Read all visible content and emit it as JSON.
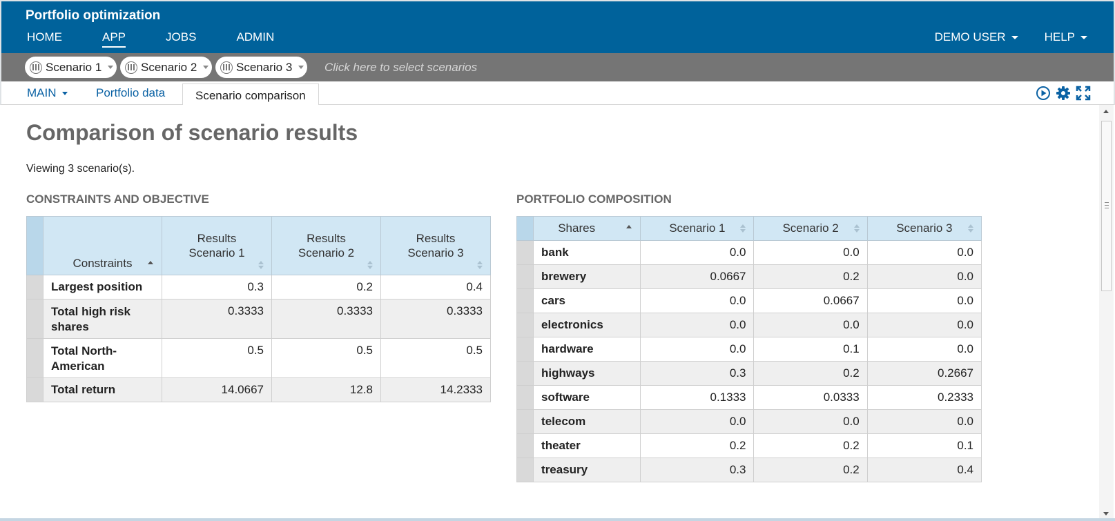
{
  "app": {
    "title": "Portfolio optimization"
  },
  "nav": {
    "items": [
      "HOME",
      "APP",
      "JOBS",
      "ADMIN"
    ],
    "active": "APP",
    "user": "DEMO USER",
    "help": "HELP"
  },
  "scenarios": {
    "pills": [
      "Scenario 1",
      "Scenario 2",
      "Scenario 3"
    ],
    "hint": "Click here to select scenarios"
  },
  "tabs": {
    "main": "MAIN",
    "portfolio": "Portfolio data",
    "comparison": "Scenario comparison"
  },
  "icons": {
    "run": "play-circle-icon",
    "settings": "gear-icon",
    "expand": "fullscreen-icon"
  },
  "page": {
    "title": "Comparison of scenario results",
    "viewing": "Viewing 3 scenario(s)."
  },
  "constraints": {
    "section_title": "CONSTRAINTS AND OBJECTIVE",
    "columns": [
      "Constraints",
      "Results\nScenario 1",
      "Results\nScenario 2",
      "Results\nScenario 3"
    ],
    "rows": [
      {
        "label": "Largest position",
        "values": [
          "0.3",
          "0.2",
          "0.4"
        ]
      },
      {
        "label": "Total high risk shares",
        "values": [
          "0.3333",
          "0.3333",
          "0.3333"
        ]
      },
      {
        "label": "Total North-American",
        "values": [
          "0.5",
          "0.5",
          "0.5"
        ]
      },
      {
        "label": "Total return",
        "values": [
          "14.0667",
          "12.8",
          "14.2333"
        ]
      }
    ]
  },
  "composition": {
    "section_title": "PORTFOLIO COMPOSITION",
    "columns": [
      "Shares",
      "Scenario 1",
      "Scenario 2",
      "Scenario 3"
    ],
    "rows": [
      {
        "label": "bank",
        "values": [
          "0.0",
          "0.0",
          "0.0"
        ]
      },
      {
        "label": "brewery",
        "values": [
          "0.0667",
          "0.2",
          "0.0"
        ]
      },
      {
        "label": "cars",
        "values": [
          "0.0",
          "0.0667",
          "0.0"
        ]
      },
      {
        "label": "electronics",
        "values": [
          "0.0",
          "0.0",
          "0.0"
        ]
      },
      {
        "label": "hardware",
        "values": [
          "0.0",
          "0.1",
          "0.0"
        ]
      },
      {
        "label": "highways",
        "values": [
          "0.3",
          "0.2",
          "0.2667"
        ]
      },
      {
        "label": "software",
        "values": [
          "0.1333",
          "0.0333",
          "0.2333"
        ]
      },
      {
        "label": "telecom",
        "values": [
          "0.0",
          "0.0",
          "0.0"
        ]
      },
      {
        "label": "theater",
        "values": [
          "0.2",
          "0.2",
          "0.1"
        ]
      },
      {
        "label": "treasury",
        "values": [
          "0.3",
          "0.2",
          "0.4"
        ]
      }
    ]
  },
  "colors": {
    "header": "#00629b",
    "scenario_bar": "#757575",
    "link": "#0b62a4",
    "table_header": "#d1e7f4"
  }
}
